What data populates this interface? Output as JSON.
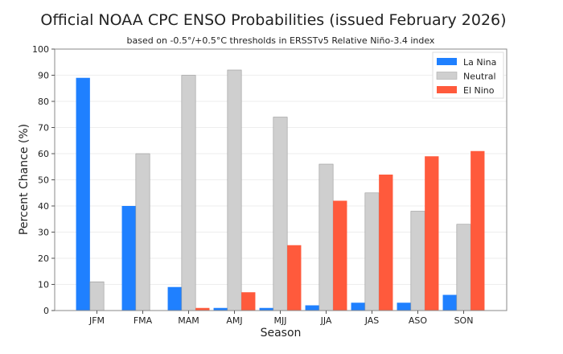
{
  "chart_data": {
    "type": "bar",
    "title": "Official NOAA CPC ENSO Probabilities (issued February 2026)",
    "subtitle": "based on -0.5°/+0.5°C thresholds in ERSSTv5 Relative Niño-3.4 index",
    "xlabel": "Season",
    "ylabel": "Percent Chance (%)",
    "ylim": [
      0,
      100
    ],
    "yticks": [
      0,
      10,
      20,
      30,
      40,
      50,
      60,
      70,
      80,
      90,
      100
    ],
    "grid": true,
    "legend_position": "top-right",
    "categories": [
      "JFM",
      "FMA",
      "MAM",
      "AMJ",
      "MJJ",
      "JJA",
      "JAS",
      "ASO",
      "SON"
    ],
    "series": [
      {
        "name": "La Nina",
        "color": "#1f80ff",
        "values": [
          89,
          40,
          9,
          1,
          1,
          2,
          3,
          3,
          6
        ]
      },
      {
        "name": "Neutral",
        "color": "#cfcfcf",
        "values": [
          11,
          60,
          90,
          92,
          74,
          56,
          45,
          38,
          33
        ]
      },
      {
        "name": "El Nino",
        "color": "#ff5a3c",
        "values": [
          0,
          0,
          1,
          7,
          25,
          42,
          52,
          59,
          61
        ]
      }
    ]
  }
}
